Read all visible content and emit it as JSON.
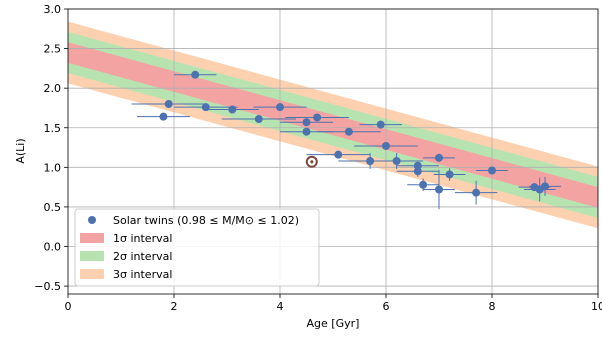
{
  "chart_data": {
    "type": "scatter",
    "xlabel": "Age [Gyr]",
    "ylabel": "A(Li)",
    "xlim": [
      0,
      10
    ],
    "ylim": [
      -0.6,
      3.0
    ],
    "xticks": [
      0,
      2,
      4,
      6,
      8,
      10
    ],
    "yticks": [
      -0.5,
      0.0,
      0.5,
      1.0,
      1.5,
      2.0,
      2.5,
      3.0
    ],
    "xtick_labels": [
      "0",
      "2",
      "4",
      "6",
      "8",
      "10"
    ],
    "ytick_labels": [
      "−0.5",
      "0.0",
      "0.5",
      "1.0",
      "1.5",
      "2.0",
      "2.5",
      "3.0"
    ],
    "grid": true,
    "legend_position": "lower-left",
    "colors": {
      "points": "#4c72b0",
      "band_1sigma": "#f4a3a3",
      "band_2sigma": "#b7e3b0",
      "band_3sigma": "#fdd0b0",
      "sun_marker": "#7a4a3a"
    },
    "trend": {
      "intercept": 2.45,
      "slope": -0.183,
      "sigma_1_halfwidth": 0.13,
      "sigma_2_halfwidth": 0.26,
      "sigma_3_halfwidth": 0.39
    },
    "series": [
      {
        "name": "Solar twins (0.98 ≤ M/M⊙ ≤ 1.02)",
        "points": [
          {
            "x": 2.4,
            "y": 2.17,
            "xerr": 0.4,
            "yerr": 0.02
          },
          {
            "x": 1.9,
            "y": 1.8,
            "xerr": 0.7,
            "yerr": 0.02
          },
          {
            "x": 2.6,
            "y": 1.76,
            "xerr": 0.6,
            "yerr": 0.02
          },
          {
            "x": 1.8,
            "y": 1.64,
            "xerr": 0.5,
            "yerr": 0.02
          },
          {
            "x": 3.1,
            "y": 1.73,
            "xerr": 0.5,
            "yerr": 0.02
          },
          {
            "x": 4.0,
            "y": 1.76,
            "xerr": 0.5,
            "yerr": 0.02
          },
          {
            "x": 3.6,
            "y": 1.61,
            "xerr": 0.7,
            "yerr": 0.02
          },
          {
            "x": 4.5,
            "y": 1.57,
            "xerr": 0.5,
            "yerr": 0.03
          },
          {
            "x": 4.7,
            "y": 1.63,
            "xerr": 0.6,
            "yerr": 0.03
          },
          {
            "x": 4.5,
            "y": 1.45,
            "xerr": 0.5,
            "yerr": 0.02
          },
          {
            "x": 5.3,
            "y": 1.45,
            "xerr": 0.6,
            "yerr": 0.02
          },
          {
            "x": 5.9,
            "y": 1.54,
            "xerr": 0.4,
            "yerr": 0.02
          },
          {
            "x": 6.0,
            "y": 1.27,
            "xerr": 0.6,
            "yerr": 0.05
          },
          {
            "x": 5.1,
            "y": 1.16,
            "xerr": 0.6,
            "yerr": 0.03
          },
          {
            "x": 5.7,
            "y": 1.08,
            "xerr": 0.6,
            "yerr": 0.1
          },
          {
            "x": 6.2,
            "y": 1.08,
            "xerr": 0.5,
            "yerr": 0.1
          },
          {
            "x": 6.6,
            "y": 1.02,
            "xerr": 0.4,
            "yerr": 0.05
          },
          {
            "x": 6.6,
            "y": 0.95,
            "xerr": 0.4,
            "yerr": 0.07
          },
          {
            "x": 7.0,
            "y": 1.12,
            "xerr": 0.3,
            "yerr": 0.05
          },
          {
            "x": 7.2,
            "y": 0.91,
            "xerr": 0.3,
            "yerr": 0.08
          },
          {
            "x": 6.7,
            "y": 0.78,
            "xerr": 0.3,
            "yerr": 0.08
          },
          {
            "x": 7.0,
            "y": 0.72,
            "xerr": 0.3,
            "yerr": 0.25
          },
          {
            "x": 7.7,
            "y": 0.68,
            "xerr": 0.4,
            "yerr": 0.15
          },
          {
            "x": 8.0,
            "y": 0.96,
            "xerr": 0.3,
            "yerr": 0.03
          },
          {
            "x": 8.8,
            "y": 0.75,
            "xerr": 0.3,
            "yerr": 0.05
          },
          {
            "x": 8.9,
            "y": 0.72,
            "xerr": 0.3,
            "yerr": 0.15
          },
          {
            "x": 9.0,
            "y": 0.76,
            "xerr": 0.3,
            "yerr": 0.12
          }
        ]
      }
    ],
    "sun": {
      "x": 4.6,
      "y": 1.07
    },
    "legend": [
      {
        "label": "Solar twins (0.98 ≤ M/M⊙ ≤ 1.02)",
        "kind": "marker",
        "color_key": "points"
      },
      {
        "label": "1σ interval",
        "kind": "patch",
        "color_key": "band_1sigma"
      },
      {
        "label": "2σ interval",
        "kind": "patch",
        "color_key": "band_2sigma"
      },
      {
        "label": "3σ interval",
        "kind": "patch",
        "color_key": "band_3sigma"
      }
    ]
  }
}
